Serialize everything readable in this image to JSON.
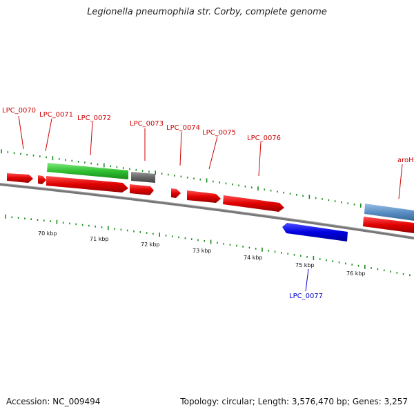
{
  "title": "Legionella pneumophila str. Corby, complete genome",
  "footer": {
    "accession": "Accession: NC_009494",
    "topology": "Topology: circular; Length: 3,576,470 bp; Genes: 3,257"
  },
  "ticks": [
    "70 kbp",
    "71 kbp",
    "72 kbp",
    "73 kbp",
    "74 kbp",
    "75 kbp",
    "76 kbp"
  ],
  "genes": [
    {
      "name": "LPC_0070",
      "color": "#cc0000"
    },
    {
      "name": "LPC_0071",
      "color": "#cc0000"
    },
    {
      "name": "LPC_0072",
      "color": "#cc0000"
    },
    {
      "name": "LPC_0073",
      "color": "#cc0000"
    },
    {
      "name": "LPC_0074",
      "color": "#cc0000"
    },
    {
      "name": "LPC_0075",
      "color": "#cc0000"
    },
    {
      "name": "LPC_0076",
      "color": "#cc0000"
    },
    {
      "name": "aroH",
      "color": "#cc0000"
    },
    {
      "name": "LPC_0077",
      "color": "#0000cc"
    }
  ],
  "colors": {
    "forward_gene": "#e01010",
    "reverse_gene": "#0a0ae6",
    "rna_green": "#36c236",
    "pseudo_gray": "#666666",
    "steelblue": "#5b8fc4",
    "backbone": "#777777",
    "tick": "#1a8a1a"
  }
}
